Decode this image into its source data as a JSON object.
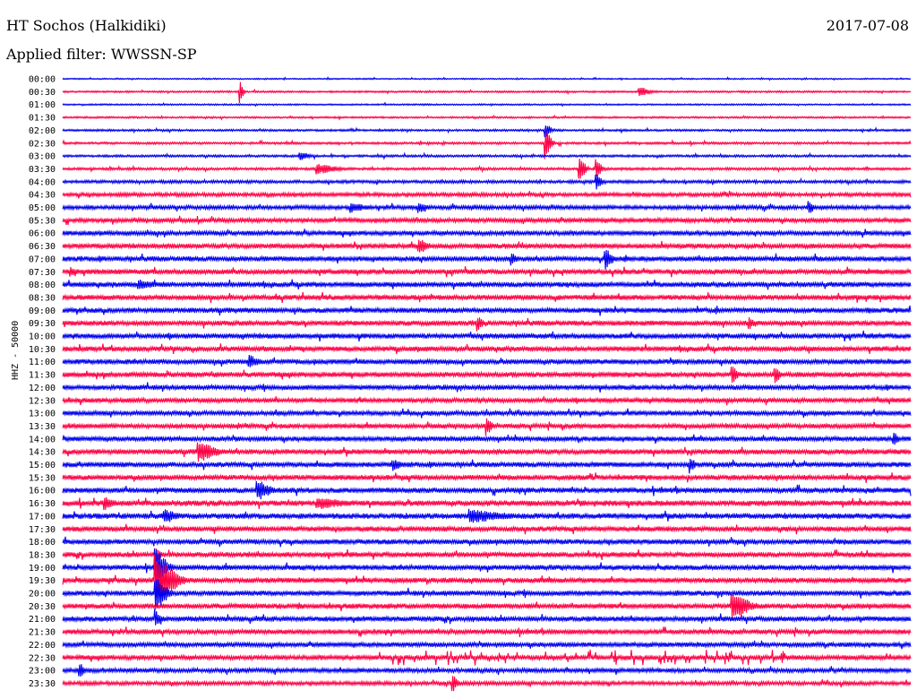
{
  "header": {
    "station": "HT Sochos (Halkidiki)",
    "date": "2017-07-08",
    "filter": "Applied filter: WWSSN-SP"
  },
  "channel_label": "HHZ - 50000",
  "colors": {
    "odd_row": "#0000ee",
    "even_row": "#ff0044",
    "text": "#000000"
  },
  "chart_data": {
    "type": "line",
    "title": "HT Sochos (Halkidiki)",
    "subtitle": "Applied filter: WWSSN-SP",
    "ylabel": "HHZ - 50000",
    "xlabel": "",
    "categories": [
      "00:00",
      "00:30",
      "01:00",
      "01:30",
      "02:00",
      "02:30",
      "03:00",
      "03:30",
      "04:00",
      "04:30",
      "05:00",
      "05:30",
      "06:00",
      "06:30",
      "07:00",
      "07:30",
      "08:00",
      "08:30",
      "09:00",
      "09:30",
      "10:00",
      "10:30",
      "11:00",
      "11:30",
      "12:00",
      "12:30",
      "13:00",
      "13:30",
      "14:00",
      "14:30",
      "15:00",
      "15:30",
      "16:00",
      "16:30",
      "17:00",
      "17:30",
      "18:00",
      "18:30",
      "19:00",
      "19:30",
      "20:00",
      "20:30",
      "21:00",
      "21:30",
      "22:00",
      "22:30",
      "23:00",
      "23:30"
    ],
    "row_activity": [
      0.5,
      0.7,
      0.6,
      0.7,
      0.8,
      0.9,
      0.9,
      1.0,
      1.2,
      1.5,
      1.6,
      1.7,
      1.8,
      1.9,
      2.0,
      2.0,
      2.0,
      2.0,
      2.0,
      2.0,
      2.0,
      2.0,
      2.0,
      2.0,
      1.9,
      1.8,
      1.8,
      1.8,
      1.9,
      2.0,
      2.0,
      2.0,
      2.1,
      2.2,
      2.2,
      2.0,
      2.0,
      2.0,
      2.0,
      2.0,
      2.0,
      2.0,
      2.0,
      1.9,
      1.8,
      1.8,
      1.7,
      1.5
    ],
    "events": [
      {
        "row": 1,
        "pos": 0.21,
        "amp": 10,
        "width": 0.005
      },
      {
        "row": 1,
        "pos": 0.68,
        "amp": 6,
        "width": 0.02
      },
      {
        "row": 4,
        "pos": 0.57,
        "amp": 8,
        "width": 0.01
      },
      {
        "row": 5,
        "pos": 0.57,
        "amp": 18,
        "width": 0.01
      },
      {
        "row": 6,
        "pos": 0.28,
        "amp": 5,
        "width": 0.02
      },
      {
        "row": 7,
        "pos": 0.3,
        "amp": 6,
        "width": 0.04
      },
      {
        "row": 7,
        "pos": 0.61,
        "amp": 14,
        "width": 0.01
      },
      {
        "row": 7,
        "pos": 0.63,
        "amp": 10,
        "width": 0.01
      },
      {
        "row": 8,
        "pos": 0.63,
        "amp": 10,
        "width": 0.01
      },
      {
        "row": 10,
        "pos": 0.34,
        "amp": 6,
        "width": 0.03
      },
      {
        "row": 10,
        "pos": 0.42,
        "amp": 6,
        "width": 0.02
      },
      {
        "row": 10,
        "pos": 0.88,
        "amp": 8,
        "width": 0.01
      },
      {
        "row": 13,
        "pos": 0.42,
        "amp": 9,
        "width": 0.02
      },
      {
        "row": 14,
        "pos": 0.64,
        "amp": 12,
        "width": 0.015
      },
      {
        "row": 14,
        "pos": 0.53,
        "amp": 7,
        "width": 0.01
      },
      {
        "row": 15,
        "pos": 0.01,
        "amp": 6,
        "width": 0.01
      },
      {
        "row": 16,
        "pos": 0.09,
        "amp": 6,
        "width": 0.04
      },
      {
        "row": 19,
        "pos": 0.49,
        "amp": 8,
        "width": 0.01
      },
      {
        "row": 19,
        "pos": 0.81,
        "amp": 7,
        "width": 0.01
      },
      {
        "row": 22,
        "pos": 0.22,
        "amp": 8,
        "width": 0.02
      },
      {
        "row": 23,
        "pos": 0.79,
        "amp": 12,
        "width": 0.01
      },
      {
        "row": 23,
        "pos": 0.84,
        "amp": 10,
        "width": 0.01
      },
      {
        "row": 27,
        "pos": 0.5,
        "amp": 11,
        "width": 0.01
      },
      {
        "row": 28,
        "pos": 0.98,
        "amp": 8,
        "width": 0.01
      },
      {
        "row": 29,
        "pos": 0.16,
        "amp": 12,
        "width": 0.035
      },
      {
        "row": 30,
        "pos": 0.39,
        "amp": 7,
        "width": 0.02
      },
      {
        "row": 30,
        "pos": 0.74,
        "amp": 9,
        "width": 0.01
      },
      {
        "row": 32,
        "pos": 0.23,
        "amp": 12,
        "width": 0.025
      },
      {
        "row": 33,
        "pos": 0.05,
        "amp": 8,
        "width": 0.02
      },
      {
        "row": 33,
        "pos": 0.3,
        "amp": 7,
        "width": 0.06
      },
      {
        "row": 34,
        "pos": 0.12,
        "amp": 8,
        "width": 0.03
      },
      {
        "row": 34,
        "pos": 0.48,
        "amp": 8,
        "width": 0.07
      },
      {
        "row": 37,
        "pos": 0.11,
        "amp": 10,
        "width": 0.01
      },
      {
        "row": 38,
        "pos": 0.11,
        "amp": 22,
        "width": 0.02
      },
      {
        "row": 39,
        "pos": 0.11,
        "amp": 28,
        "width": 0.035
      },
      {
        "row": 40,
        "pos": 0.11,
        "amp": 20,
        "width": 0.02
      },
      {
        "row": 41,
        "pos": 0.79,
        "amp": 18,
        "width": 0.03
      },
      {
        "row": 42,
        "pos": 0.11,
        "amp": 10,
        "width": 0.01
      },
      {
        "row": 45,
        "pos": 0.62,
        "amp": 9,
        "width": 0.25,
        "spiky": true
      },
      {
        "row": 46,
        "pos": 0.02,
        "amp": 9,
        "width": 0.01
      },
      {
        "row": 47,
        "pos": 0.46,
        "amp": 10,
        "width": 0.01
      }
    ]
  }
}
